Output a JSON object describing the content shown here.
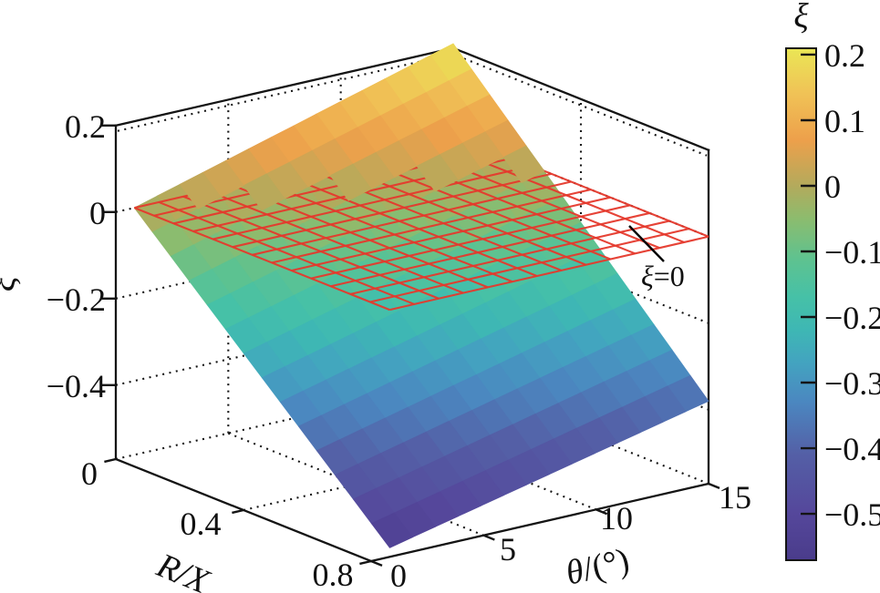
{
  "figure": {
    "background": "#ffffff",
    "z_axis_label": {
      "italic": "ξ",
      "normal": ""
    },
    "x_axis_label": {
      "italic": "R/X",
      "normal": ""
    },
    "y_axis_label": {
      "italic": "θ",
      "normal": "/(°)"
    },
    "annotation": {
      "italic": "ξ",
      "normal": "=0"
    },
    "colorbar_title": {
      "italic": "ξ",
      "normal": ""
    }
  },
  "chart_data": {
    "type": "heatmap",
    "subtype": "3d_surface_plot",
    "title": "",
    "x_axis": {
      "label": "R/X",
      "tick_labels": [
        "0",
        "0.4",
        "0.8"
      ],
      "tick_values": [
        0,
        0.4,
        0.8
      ],
      "range": [
        0,
        0.8
      ]
    },
    "y_axis": {
      "label": "θ/(°)",
      "tick_labels": [
        "0",
        "5",
        "10",
        "15"
      ],
      "tick_values": [
        0,
        5,
        10,
        15
      ],
      "range": [
        0,
        15
      ]
    },
    "z_axis": {
      "label": "ξ",
      "tick_labels": [
        "0.2",
        "0",
        "−0.2",
        "−0.4"
      ],
      "tick_values": [
        0.2,
        0,
        -0.2,
        -0.4
      ],
      "range": [
        -0.571,
        0.2
      ],
      "grid": "dotted"
    },
    "surface": {
      "description": "ξ(R/X, θ): decreases with R/X, increases with θ; near-planar sheet, bilinear through corner values",
      "corner_values": {
        "at_RX0_theta0": 0.0,
        "at_RX0.8_theta0": -0.55,
        "at_RX0_theta15": 0.21,
        "at_RX0.8_theta15": -0.38
      },
      "grid_divisions": 14,
      "shading": "flat"
    },
    "reference_plane": {
      "xi": 0,
      "label": "ξ=0",
      "color": "#e5392c",
      "grid_divisions": 13,
      "occluded_where": "surface ξ > 0"
    },
    "colorbar": {
      "title": "ξ",
      "tick_labels": [
        "0.2",
        "0.1",
        "0",
        "−0.1",
        "−0.2",
        "−0.3",
        "−0.4",
        "−0.5"
      ],
      "tick_values": [
        0.2,
        0.1,
        0,
        -0.1,
        -0.2,
        -0.3,
        -0.4,
        -0.5
      ],
      "value_range": [
        -0.5708,
        0.2097
      ]
    },
    "colormap_stops": [
      [
        0.21,
        "#eae655"
      ],
      [
        0.14,
        "#f0c256"
      ],
      [
        0.07,
        "#eda04b"
      ],
      [
        0.0,
        "#b3aa5c"
      ],
      [
        -0.05,
        "#8cbc6e"
      ],
      [
        -0.11,
        "#5fc28f"
      ],
      [
        -0.17,
        "#46c1a7"
      ],
      [
        -0.22,
        "#3eb7b4"
      ],
      [
        -0.27,
        "#43a3c0"
      ],
      [
        -0.33,
        "#4b87c0"
      ],
      [
        -0.41,
        "#545fa6"
      ],
      [
        -0.5,
        "#55479b"
      ],
      [
        -0.5708,
        "#4a3c8b"
      ]
    ]
  }
}
